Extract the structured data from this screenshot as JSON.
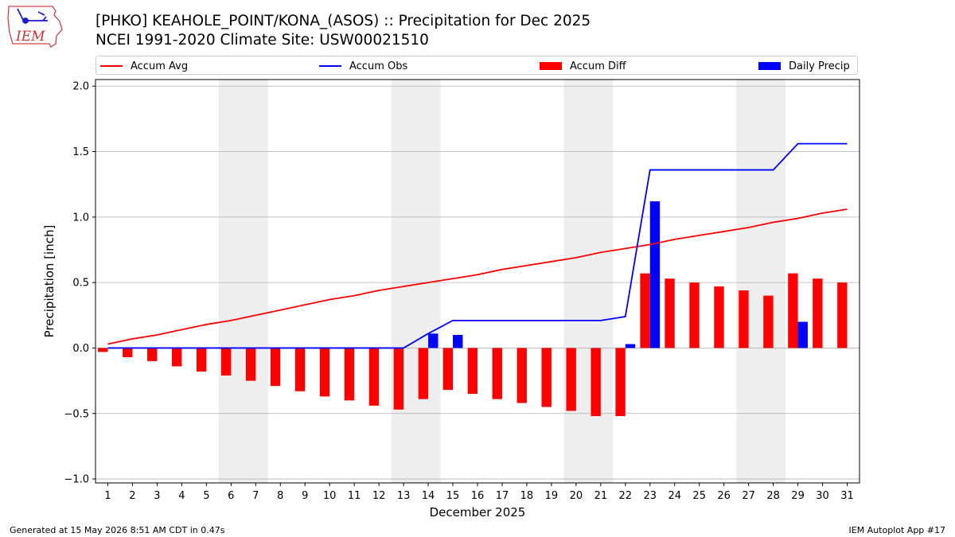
{
  "header": {
    "title_line1": "[PHKO] KEAHOLE_POINT/KONA_(ASOS) :: Precipitation for Dec 2025",
    "title_line2": "NCEI 1991-2020 Climate Site: USW00021510",
    "logo_text": "IEM"
  },
  "footer": {
    "generated": "Generated at 15 May 2026 8:51 AM CDT in 0.47s",
    "app": "IEM Autoplot App #17"
  },
  "colors": {
    "accum_avg": "#ff0000",
    "accum_obs": "#0000ff",
    "accum_diff": "#ff0000",
    "daily_precip": "#0000ff",
    "weekend_shade": "#eeeeee",
    "grid": "#b0b0b0"
  },
  "chart_data": {
    "type": "bar",
    "title": "[PHKO] KEAHOLE_POINT/KONA_(ASOS) :: Precipitation for Dec 2025",
    "subtitle": "NCEI 1991-2020 Climate Site: USW00021510",
    "xlabel": "December 2025",
    "ylabel": "Precipitation [inch]",
    "ylim": [
      -1.0,
      2.0
    ],
    "yticks": [
      -1.0,
      -0.5,
      0.0,
      0.5,
      1.0,
      1.5,
      2.0
    ],
    "ytick_labels": [
      "−1.0",
      "−0.5",
      "0.0",
      "0.5",
      "1.0",
      "1.5",
      "2.0"
    ],
    "grid": "y",
    "legend_position": "top",
    "x": [
      1,
      2,
      3,
      4,
      5,
      6,
      7,
      8,
      9,
      10,
      11,
      12,
      13,
      14,
      15,
      16,
      17,
      18,
      19,
      20,
      21,
      22,
      23,
      24,
      25,
      26,
      27,
      28,
      29,
      30,
      31
    ],
    "x_tick_labels": [
      "1",
      "2",
      "3",
      "4",
      "5",
      "6",
      "7",
      "8",
      "9",
      "10",
      "11",
      "12",
      "13",
      "14",
      "15",
      "16",
      "17",
      "18",
      "19",
      "20",
      "21",
      "22",
      "23",
      "24",
      "25",
      "26",
      "27",
      "28",
      "29",
      "30",
      "31"
    ],
    "weekends": [
      [
        6,
        7
      ],
      [
        13,
        14
      ],
      [
        20,
        21
      ],
      [
        27,
        28
      ]
    ],
    "series": [
      {
        "name": "Accum Avg",
        "kind": "line",
        "values": [
          0.03,
          0.07,
          0.1,
          0.14,
          0.18,
          0.21,
          0.25,
          0.29,
          0.33,
          0.37,
          0.4,
          0.44,
          0.47,
          0.5,
          0.53,
          0.56,
          0.6,
          0.63,
          0.66,
          0.69,
          0.73,
          0.76,
          0.79,
          0.83,
          0.86,
          0.89,
          0.92,
          0.96,
          0.99,
          1.03,
          1.06
        ]
      },
      {
        "name": "Accum Obs",
        "kind": "line",
        "values": [
          0,
          0,
          0,
          0,
          0,
          0,
          0,
          0,
          0,
          0,
          0,
          0,
          0,
          0.11,
          0.21,
          0.21,
          0.21,
          0.21,
          0.21,
          0.21,
          0.21,
          0.24,
          1.36,
          1.36,
          1.36,
          1.36,
          1.36,
          1.36,
          1.56,
          1.56,
          1.56
        ]
      },
      {
        "name": "Accum Diff",
        "kind": "bar",
        "values": [
          -0.03,
          -0.07,
          -0.1,
          -0.14,
          -0.18,
          -0.21,
          -0.25,
          -0.29,
          -0.33,
          -0.37,
          -0.4,
          -0.44,
          -0.47,
          -0.39,
          -0.32,
          -0.35,
          -0.39,
          -0.42,
          -0.45,
          -0.48,
          -0.52,
          -0.52,
          0.57,
          0.53,
          0.5,
          0.47,
          0.44,
          0.4,
          0.57,
          0.53,
          0.5
        ]
      },
      {
        "name": "Daily Precip",
        "kind": "bar",
        "values": [
          0,
          0,
          0,
          0,
          0,
          0,
          0,
          0,
          0,
          0,
          0,
          0,
          0,
          0.11,
          0.1,
          0,
          0,
          0,
          0,
          0,
          0,
          0.03,
          1.12,
          0,
          0,
          0,
          0,
          0,
          0.2,
          0,
          0
        ]
      }
    ]
  }
}
